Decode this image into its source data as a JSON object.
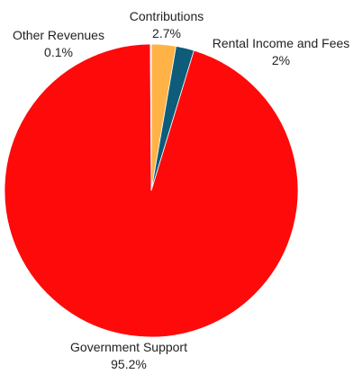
{
  "chart_data": {
    "type": "pie",
    "start_angle_deg": 0,
    "direction": "clockwise",
    "slices": [
      {
        "label": "Contributions",
        "value": 2.7,
        "value_label": "2.7%",
        "color": "#FFB347"
      },
      {
        "label": "Rental Income and Fees",
        "value": 2.0,
        "value_label": "2%",
        "color": "#0D5C7A"
      },
      {
        "label": "Government Support",
        "value": 95.2,
        "value_label": "95.2%",
        "color": "#FF0A0A"
      },
      {
        "label": "Other Revenues",
        "value": 0.1,
        "value_label": "0.1%",
        "color": "#FFFFFF"
      }
    ]
  }
}
